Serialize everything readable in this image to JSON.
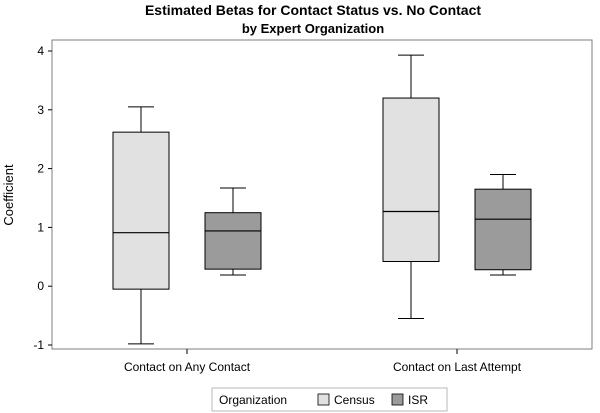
{
  "chart_data": {
    "type": "box",
    "title": "Estimated Betas for Contact Status vs. No Contact",
    "subtitle": "by Expert Organization",
    "ylabel": "Coefficient",
    "xlabel": "",
    "ylim": [
      -1,
      4
    ],
    "yticks": [
      -1,
      0,
      1,
      2,
      3,
      4
    ],
    "categories": [
      "Contact on Any Contact",
      "Contact on Last Attempt"
    ],
    "legend": {
      "title": "Organization",
      "position": "bottom"
    },
    "series": [
      {
        "name": "Census",
        "color": "#e1e1e1",
        "boxes": [
          {
            "min": -0.98,
            "q1": -0.05,
            "median": 0.91,
            "q3": 2.62,
            "max": 3.05
          },
          {
            "min": -0.55,
            "q1": 0.42,
            "median": 1.27,
            "q3": 3.2,
            "max": 3.93
          }
        ]
      },
      {
        "name": "ISR",
        "color": "#9b9b9b",
        "boxes": [
          {
            "min": 0.19,
            "q1": 0.29,
            "median": 0.94,
            "q3": 1.25,
            "max": 1.67
          },
          {
            "min": 0.19,
            "q1": 0.28,
            "median": 1.14,
            "q3": 1.65,
            "max": 1.9
          }
        ]
      }
    ]
  }
}
